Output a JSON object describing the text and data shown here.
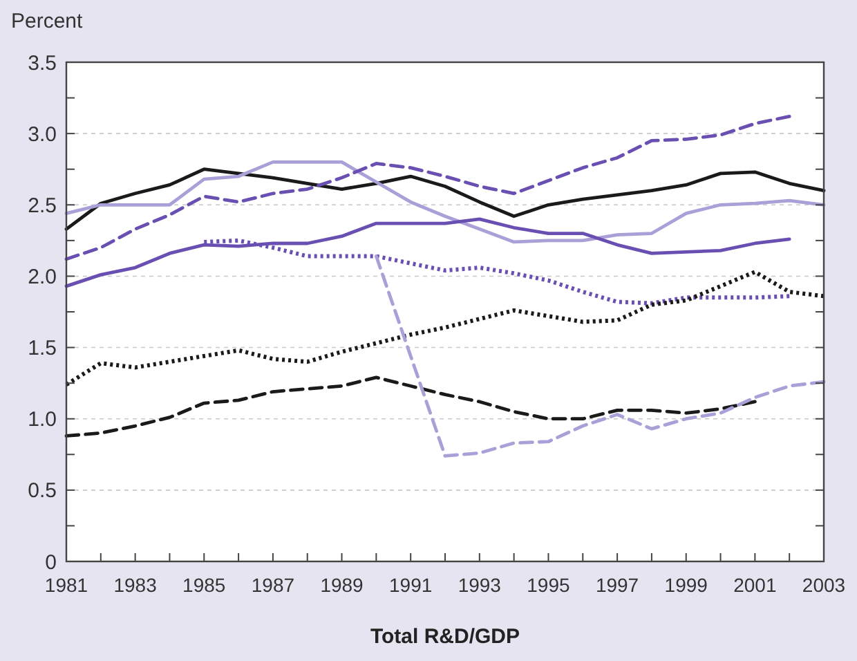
{
  "chart_data": {
    "type": "line",
    "xlabel": "Total R&D/GDP",
    "ylabel": "Percent",
    "xlim": [
      1981,
      2003
    ],
    "ylim": [
      0,
      3.5
    ],
    "xticks": [
      1981,
      {
        "value": 1982,
        "label": null
      },
      1983,
      {
        "value": 1984,
        "label": null
      },
      1985,
      {
        "value": 1986,
        "label": null
      },
      1987,
      {
        "value": 1988,
        "label": null
      },
      1989,
      {
        "value": 1990,
        "label": null
      },
      1991,
      {
        "value": 1992,
        "label": null
      },
      1993,
      {
        "value": 1994,
        "label": null
      },
      1995,
      {
        "value": 1996,
        "label": null
      },
      1997,
      {
        "value": 1998,
        "label": null
      },
      1999,
      {
        "value": 2000,
        "label": null
      },
      2001,
      {
        "value": 2002,
        "label": null
      },
      2003
    ],
    "yticks": [
      0,
      {
        "value": 0.25,
        "label": null
      },
      0.5,
      {
        "value": 0.75,
        "label": null
      },
      {
        "value": 1.0,
        "label": "1.0"
      },
      {
        "value": 1.25,
        "label": null
      },
      1.5,
      {
        "value": 1.75,
        "label": null
      },
      {
        "value": 2.0,
        "label": "2.0"
      },
      {
        "value": 2.25,
        "label": null
      },
      2.5,
      {
        "value": 2.75,
        "label": null
      },
      {
        "value": 3.0,
        "label": "3.0"
      },
      {
        "value": 3.25,
        "label": null
      },
      3.5
    ],
    "grid": "y",
    "marker": "none",
    "series": [
      {
        "color": "#1a1a1a",
        "line_style": "solid",
        "x": [
          1981,
          1982,
          1983,
          1984,
          1985,
          1986,
          1987,
          1988,
          1989,
          1990,
          1991,
          1992,
          1993,
          1994,
          1995,
          1996,
          1997,
          1998,
          1999,
          2000,
          2001,
          2002,
          2003
        ],
        "values": [
          2.33,
          2.51,
          2.58,
          2.64,
          2.75,
          2.72,
          2.69,
          2.65,
          2.61,
          2.65,
          2.7,
          2.63,
          2.52,
          2.42,
          2.5,
          2.54,
          2.57,
          2.6,
          2.64,
          2.72,
          2.73,
          2.65,
          2.6
        ]
      },
      {
        "color": "#ab9fd8",
        "line_style": "solid",
        "x": [
          1981,
          1982,
          1983,
          1984,
          1985,
          1986,
          1987,
          1988,
          1989,
          1990,
          1991,
          1992,
          1993,
          1994,
          1995,
          1996,
          1997,
          1998,
          1999,
          2000,
          2001,
          2002,
          2003
        ],
        "values": [
          2.44,
          2.5,
          2.5,
          2.5,
          2.68,
          2.7,
          2.8,
          2.8,
          2.8,
          2.66,
          2.52,
          2.42,
          2.33,
          2.24,
          2.25,
          2.25,
          2.29,
          2.3,
          2.44,
          2.5,
          2.51,
          2.53,
          2.5
        ]
      },
      {
        "color": "#6a4fb3",
        "line_style": "dashed",
        "x": [
          1981,
          1982,
          1983,
          1984,
          1985,
          1986,
          1987,
          1988,
          1989,
          1990,
          1991,
          1992,
          1993,
          1994,
          1995,
          1996,
          1997,
          1998,
          1999,
          2000,
          2001,
          2002
        ],
        "values": [
          2.12,
          2.2,
          2.33,
          2.43,
          2.56,
          2.52,
          2.58,
          2.61,
          2.69,
          2.79,
          2.76,
          2.7,
          2.63,
          2.58,
          2.67,
          2.76,
          2.83,
          2.95,
          2.96,
          2.99,
          3.07,
          3.12
        ]
      },
      {
        "color": "#6a4fb3",
        "line_style": "solid",
        "x": [
          1981,
          1982,
          1983,
          1984,
          1985,
          1986,
          1987,
          1988,
          1989,
          1990,
          1991,
          1992,
          1993,
          1994,
          1995,
          1996,
          1997,
          1998,
          1999,
          2000,
          2001,
          2002
        ],
        "values": [
          1.93,
          2.01,
          2.06,
          2.16,
          2.22,
          2.21,
          2.23,
          2.23,
          2.28,
          2.37,
          2.37,
          2.37,
          2.4,
          2.34,
          2.3,
          2.3,
          2.22,
          2.16,
          2.17,
          2.18,
          2.23,
          2.26
        ]
      },
      {
        "color": "#6a4fb3",
        "line_style": "dotted",
        "x": [
          1985,
          1986,
          1987,
          1988,
          1989,
          1990,
          1991,
          1992,
          1993,
          1994,
          1995,
          1996,
          1997,
          1998,
          1999,
          2000,
          2001,
          2002
        ],
        "values": [
          2.24,
          2.25,
          2.2,
          2.14,
          2.14,
          2.14,
          2.09,
          2.04,
          2.06,
          2.02,
          1.97,
          1.89,
          1.82,
          1.81,
          1.85,
          1.85,
          1.85,
          1.86
        ]
      },
      {
        "color": "#1a1a1a",
        "line_style": "dotted",
        "x": [
          1981,
          1982,
          1983,
          1984,
          1985,
          1986,
          1987,
          1988,
          1989,
          1990,
          1991,
          1992,
          1993,
          1994,
          1995,
          1996,
          1997,
          1998,
          1999,
          2000,
          2001,
          2002,
          2003
        ],
        "values": [
          1.24,
          1.39,
          1.36,
          1.4,
          1.44,
          1.48,
          1.42,
          1.4,
          1.47,
          1.53,
          1.59,
          1.64,
          1.7,
          1.76,
          1.72,
          1.68,
          1.69,
          1.8,
          1.83,
          1.93,
          2.03,
          1.89,
          1.86
        ]
      },
      {
        "color": "#1a1a1a",
        "line_style": "dashed",
        "x": [
          1981,
          1982,
          1983,
          1984,
          1985,
          1986,
          1987,
          1988,
          1989,
          1990,
          1991,
          1992,
          1993,
          1994,
          1995,
          1996,
          1997,
          1998,
          1999,
          2000,
          2001
        ],
        "values": [
          0.88,
          0.9,
          0.95,
          1.01,
          1.11,
          1.13,
          1.19,
          1.21,
          1.23,
          1.29,
          1.23,
          1.17,
          1.12,
          1.05,
          1.0,
          1.0,
          1.06,
          1.06,
          1.04,
          1.07,
          1.12
        ]
      },
      {
        "color": "#ab9fd8",
        "line_style": "dashed",
        "x": [
          1990,
          1991,
          1992,
          1993,
          1994,
          1995,
          1996,
          1997,
          1998,
          1999,
          2000,
          2001,
          2002,
          2003
        ],
        "values": [
          2.14,
          1.44,
          0.74,
          0.76,
          0.83,
          0.84,
          0.95,
          1.03,
          0.93,
          1.0,
          1.04,
          1.15,
          1.23,
          1.26
        ]
      }
    ]
  }
}
